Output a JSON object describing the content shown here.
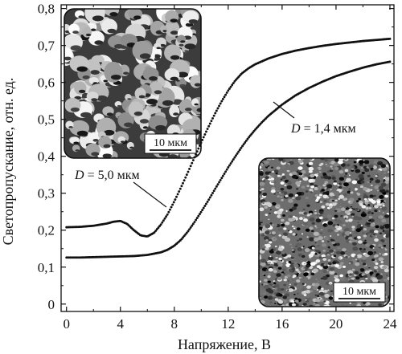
{
  "chart_data": {
    "type": "line",
    "xlabel": "Напряжение, В",
    "ylabel": "Светопропускание, отн. ед.",
    "xlim": [
      -0.4,
      24.3
    ],
    "ylim": [
      -0.02,
      0.81
    ],
    "xticks": [
      "0",
      "4",
      "8",
      "12",
      "16",
      "20",
      "24"
    ],
    "yticks": [
      "0",
      "0,1",
      "0,2",
      "0,3",
      "0,4",
      "0,5",
      "0,6",
      "0,7",
      "0,8"
    ],
    "grid": false,
    "series": [
      {
        "label_parts": {
          "var": "D",
          "rest": " = 5,0 мкм"
        },
        "x": [
          0,
          1,
          2,
          3,
          3.5,
          4,
          4.5,
          5,
          5.5,
          6,
          6.5,
          7,
          7.5,
          8,
          8.5,
          9,
          9.5,
          10,
          10.5,
          11,
          11.5,
          12,
          12.5,
          13,
          13.5,
          14,
          15,
          16,
          17,
          18,
          19,
          20,
          21,
          22,
          23,
          24
        ],
        "y": [
          0.208,
          0.209,
          0.212,
          0.218,
          0.223,
          0.225,
          0.217,
          0.2,
          0.186,
          0.183,
          0.193,
          0.215,
          0.243,
          0.278,
          0.316,
          0.356,
          0.397,
          0.438,
          0.477,
          0.514,
          0.548,
          0.578,
          0.604,
          0.624,
          0.638,
          0.649,
          0.665,
          0.677,
          0.686,
          0.693,
          0.699,
          0.704,
          0.708,
          0.712,
          0.715,
          0.718
        ]
      },
      {
        "label_parts": {
          "var": "D",
          "rest": " = 1,4 мкм"
        },
        "x": [
          0,
          1,
          2,
          3,
          4,
          5,
          6,
          7,
          7.5,
          8,
          8.5,
          9,
          9.5,
          10,
          10.5,
          11,
          11.5,
          12,
          12.5,
          13,
          13.5,
          14,
          14.5,
          15,
          16,
          17,
          18,
          19,
          20,
          21,
          22,
          23,
          24
        ],
        "y": [
          0.126,
          0.126,
          0.127,
          0.128,
          0.129,
          0.13,
          0.133,
          0.14,
          0.147,
          0.158,
          0.174,
          0.196,
          0.222,
          0.25,
          0.279,
          0.31,
          0.34,
          0.37,
          0.398,
          0.425,
          0.45,
          0.472,
          0.492,
          0.51,
          0.54,
          0.565,
          0.585,
          0.602,
          0.617,
          0.629,
          0.64,
          0.649,
          0.656
        ]
      }
    ],
    "inset_scale_labels": [
      "10 мкм",
      "10 мкм"
    ]
  }
}
